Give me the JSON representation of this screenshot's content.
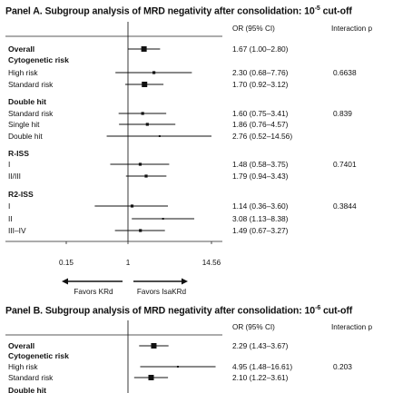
{
  "panelA": {
    "title_prefix": "Panel A. Subgroup analysis of MRD negativity after consolidation: 10",
    "title_exp": "-5",
    "title_suffix": " cut-off",
    "header": {
      "or": "OR (95% CI)",
      "interaction": "Interaction p"
    },
    "rows": [
      {
        "label": "Overall",
        "bold": true,
        "or": 1.67,
        "lo": 1.0,
        "hi": 2.8,
        "text": "1.67 (1.00–2.80)",
        "p": "",
        "big": true
      },
      {
        "label": "Cytogenetic risk",
        "bold": true,
        "header": true
      },
      {
        "label": "High risk",
        "or": 2.3,
        "lo": 0.68,
        "hi": 7.76,
        "text": "2.30 (0.68–7.76)",
        "p": "0.6638"
      },
      {
        "label": "Standard risk",
        "or": 1.7,
        "lo": 0.92,
        "hi": 3.12,
        "text": "1.70 (0.92–3.12)",
        "p": "",
        "big": true
      },
      {
        "label": "Double hit",
        "bold": true,
        "header": true
      },
      {
        "label": "Standard risk",
        "or": 1.6,
        "lo": 0.75,
        "hi": 3.41,
        "text": "1.60 (0.75–3.41)",
        "p": "0.839"
      },
      {
        "label": "Single hit",
        "or": 1.86,
        "lo": 0.76,
        "hi": 4.57,
        "text": "1.86 (0.76–4.57)",
        "p": ""
      },
      {
        "label": "Double hit",
        "or": 2.76,
        "lo": 0.52,
        "hi": 14.56,
        "text": "2.76 (0.52–14.56)",
        "p": ""
      },
      {
        "label": "R-ISS",
        "bold": true,
        "header": true
      },
      {
        "label": "I",
        "or": 1.48,
        "lo": 0.58,
        "hi": 3.75,
        "text": "1.48 (0.58–3.75)",
        "p": "0.7401"
      },
      {
        "label": "II/III",
        "or": 1.79,
        "lo": 0.94,
        "hi": 3.43,
        "text": "1.79 (0.94–3.43)",
        "p": ""
      },
      {
        "label": "R2-ISS",
        "bold": true,
        "header": true
      },
      {
        "label": "I",
        "or": 1.14,
        "lo": 0.36,
        "hi": 3.6,
        "text": "1.14 (0.36–3.60)",
        "p": "0.3844"
      },
      {
        "label": "II",
        "or": 3.08,
        "lo": 1.13,
        "hi": 8.38,
        "text": "3.08 (1.13–8.38)",
        "p": ""
      },
      {
        "label": "III–IV",
        "or": 1.49,
        "lo": 0.67,
        "hi": 3.27,
        "text": "1.49 (0.67–3.27)",
        "p": ""
      }
    ],
    "ticks": [
      "0.15",
      "1",
      "14.56"
    ],
    "favors_left": "Favors KRd",
    "favors_right": "Favors IsaKRd"
  },
  "panelB": {
    "title_prefix": "Panel B. Subgroup analysis of MRD negativity after consolidation: 10",
    "title_exp": "-6",
    "title_suffix": " cut-off",
    "header": {
      "or": "OR (95% CI)",
      "interaction": "Interaction p"
    },
    "rows": [
      {
        "label": "Overall",
        "bold": true,
        "or": 2.29,
        "lo": 1.43,
        "hi": 3.67,
        "text": "2.29 (1.43–3.67)",
        "p": "",
        "big": true
      },
      {
        "label": "Cytogenetic risk",
        "bold": true,
        "header": true
      },
      {
        "label": "High risk",
        "or": 4.95,
        "lo": 1.48,
        "hi": 16.61,
        "text": "4.95 (1.48–16.61)",
        "p": "0.203"
      },
      {
        "label": "Standard risk",
        "or": 2.1,
        "lo": 1.22,
        "hi": 3.61,
        "text": "2.10 (1.22–3.61)",
        "p": "",
        "big": true
      },
      {
        "label": "Double hit",
        "bold": true,
        "header": true
      }
    ]
  },
  "chart_data": [
    {
      "type": "forest",
      "title": "Panel A. Subgroup analysis of MRD negativity after consolidation: 10^-5 cut-off",
      "xscale": "log",
      "xticks": [
        0.15,
        1,
        14.56
      ],
      "categories": [
        "Overall",
        "High risk",
        "Standard risk",
        "Standard risk (double hit)",
        "Single hit",
        "Double hit",
        "R-ISS I",
        "R-ISS II/III",
        "R2-ISS I",
        "R2-ISS II",
        "R2-ISS III–IV"
      ],
      "values": [
        1.67,
        2.3,
        1.7,
        1.6,
        1.86,
        2.76,
        1.48,
        1.79,
        1.14,
        3.08,
        1.49
      ],
      "lower": [
        1.0,
        0.68,
        0.92,
        0.75,
        0.76,
        0.52,
        0.58,
        0.94,
        0.36,
        1.13,
        0.67
      ],
      "upper": [
        2.8,
        7.76,
        3.12,
        3.41,
        4.57,
        14.56,
        3.75,
        3.43,
        3.6,
        8.38,
        3.27
      ]
    },
    {
      "type": "forest",
      "title": "Panel B. Subgroup analysis of MRD negativity after consolidation: 10^-6 cut-off",
      "xscale": "log",
      "categories": [
        "Overall",
        "High risk",
        "Standard risk"
      ],
      "values": [
        2.29,
        4.95,
        2.1
      ],
      "lower": [
        1.43,
        1.48,
        1.22
      ],
      "upper": [
        3.67,
        16.61,
        3.61
      ]
    }
  ]
}
